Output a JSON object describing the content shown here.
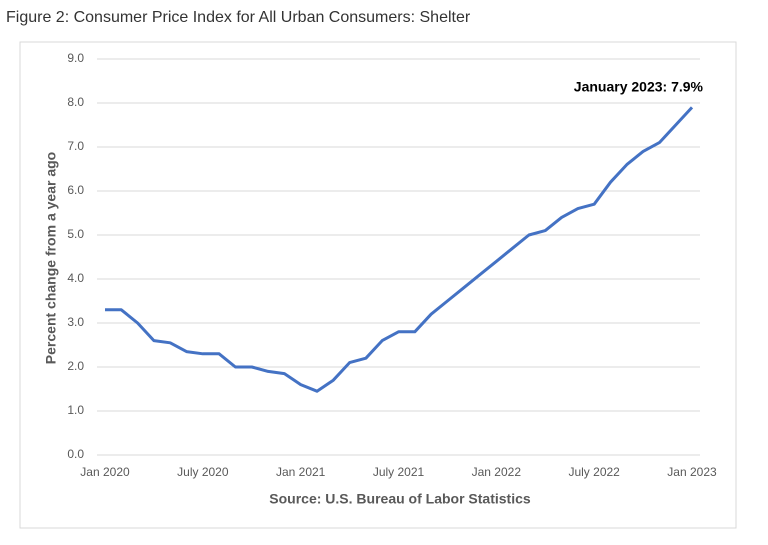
{
  "chart_data": {
    "type": "line",
    "title": "Figure 2: Consumer Price Index for All Urban Consumers: Shelter",
    "y_label": "Percent change from a year ago",
    "x_label": "Source: U.S. Bureau of Labor Statistics",
    "annotation": "January 2023: 7.9%",
    "categories": [
      "Jan 2020",
      null,
      null,
      null,
      null,
      null,
      "July 2020",
      null,
      null,
      null,
      null,
      null,
      "Jan 2021",
      null,
      null,
      null,
      null,
      null,
      "July 2021",
      null,
      null,
      null,
      null,
      null,
      "Jan 2022",
      null,
      null,
      null,
      null,
      null,
      "July 2022",
      null,
      null,
      null,
      null,
      null,
      "Jan 2023"
    ],
    "series": [
      {
        "name": "Shelter",
        "color": "#4472c4",
        "values": [
          3.3,
          3.3,
          3.0,
          2.6,
          2.55,
          2.35,
          2.3,
          2.3,
          2.0,
          2.0,
          1.9,
          1.85,
          1.6,
          1.45,
          1.7,
          2.1,
          2.2,
          2.6,
          2.8,
          2.8,
          3.2,
          3.5,
          3.8,
          4.1,
          4.4,
          4.7,
          5.0,
          5.1,
          5.4,
          5.6,
          5.7,
          6.2,
          6.6,
          6.9,
          7.1,
          7.5,
          7.9
        ]
      }
    ],
    "ylim": [
      0,
      9
    ],
    "yticks": [
      {
        "value": 0,
        "label": "0.0"
      },
      {
        "value": 1,
        "label": "1.0"
      },
      {
        "value": 2,
        "label": "2.0"
      },
      {
        "value": 3,
        "label": "3.0"
      },
      {
        "value": 4,
        "label": "4.0"
      },
      {
        "value": 5,
        "label": "5.0"
      },
      {
        "value": 6,
        "label": "6.0"
      },
      {
        "value": 7,
        "label": "7.0"
      },
      {
        "value": 8,
        "label": "8.0"
      },
      {
        "value": 9,
        "label": "9.0"
      }
    ],
    "grid": true
  }
}
